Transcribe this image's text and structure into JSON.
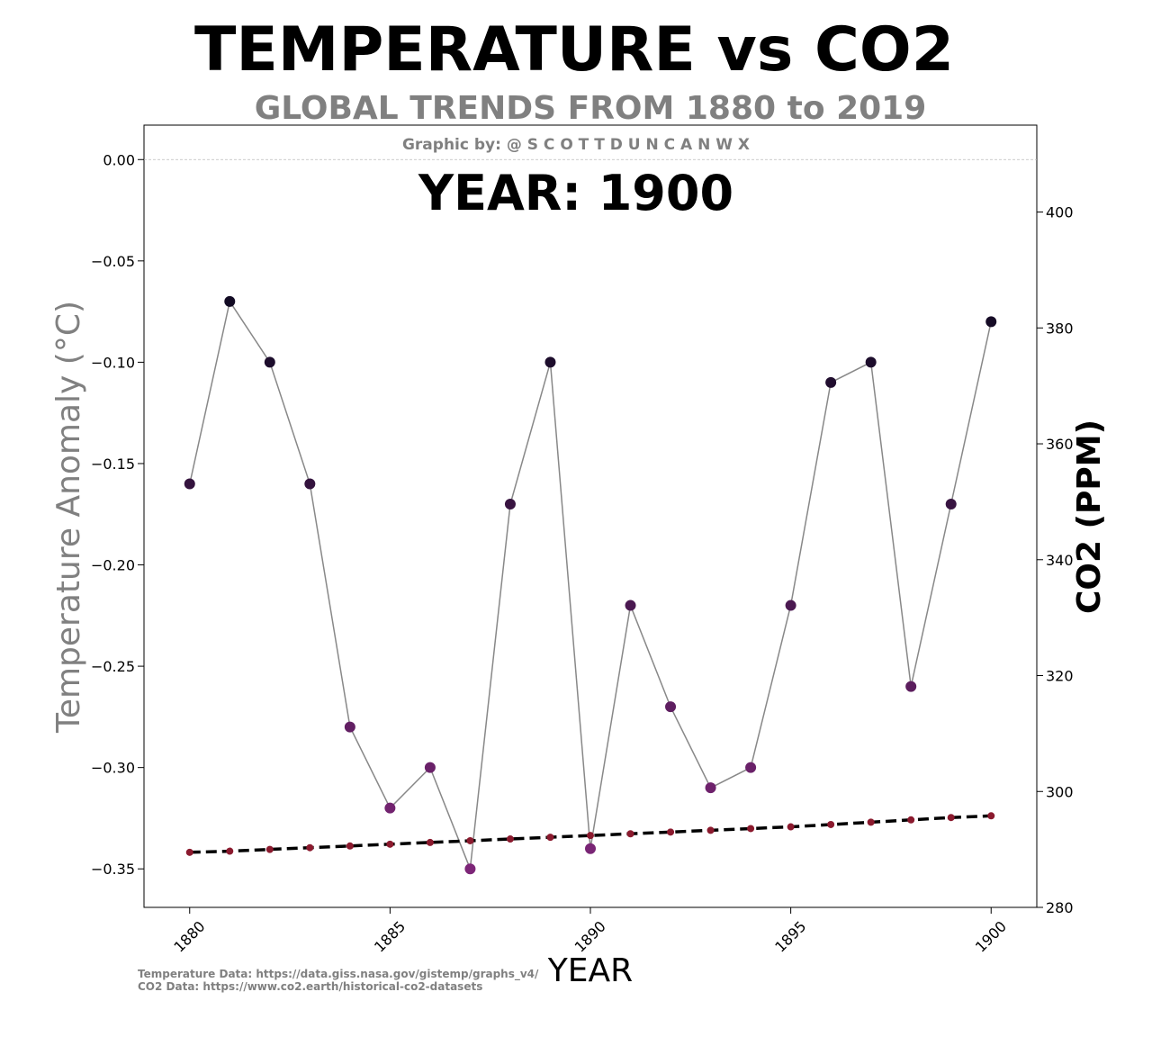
{
  "chart_data": {
    "type": "line",
    "title": "TEMPERATURE vs CO2",
    "subtitle": "GLOBAL TRENDS FROM 1880 to 2019",
    "credit": "Graphic by: @ S C O T T D U N C A N W X",
    "year_label": "YEAR: 1900",
    "xlabel": "YEAR",
    "ylabel_left": "Temperature Anomaly (°C)",
    "ylabel_right": "CO2 (PPM)",
    "x": [
      1880,
      1881,
      1882,
      1883,
      1884,
      1885,
      1886,
      1887,
      1888,
      1889,
      1890,
      1891,
      1892,
      1893,
      1894,
      1895,
      1896,
      1897,
      1898,
      1899,
      1900
    ],
    "xlim": [
      1878.86,
      1901.14
    ],
    "x_ticks": [
      1880,
      1885,
      1890,
      1895,
      1900
    ],
    "ylim_left": [
      -0.369,
      0.017
    ],
    "y_ticks_left": [
      "0.00",
      "−0.05",
      "−0.10",
      "−0.15",
      "−0.20",
      "−0.25",
      "−0.30",
      "−0.35"
    ],
    "y_tick_values_left": [
      0.0,
      -0.05,
      -0.1,
      -0.15,
      -0.2,
      -0.25,
      -0.3,
      -0.35
    ],
    "ylim_right": [
      280,
      415
    ],
    "y_ticks_right": [
      280,
      300,
      320,
      340,
      360,
      380,
      400
    ],
    "series": [
      {
        "name": "",
        "axis": "left",
        "line_color": "#888888",
        "values": [
          -0.16,
          -0.07,
          -0.1,
          -0.16,
          -0.28,
          -0.32,
          -0.3,
          -0.35,
          -0.17,
          -0.1,
          -0.34,
          -0.22,
          -0.27,
          -0.31,
          -0.3,
          -0.22,
          -0.11,
          -0.1,
          -0.26,
          -0.17,
          -0.08
        ]
      },
      {
        "name": "",
        "axis": "right",
        "line_color": "#000000",
        "marker_color": "#8b1a2e",
        "values": [
          289.5,
          289.7,
          290.0,
          290.3,
          290.6,
          290.9,
          291.2,
          291.5,
          291.8,
          292.1,
          292.4,
          292.7,
          293.0,
          293.3,
          293.6,
          293.9,
          294.3,
          294.7,
          295.1,
          295.5,
          295.8
        ]
      }
    ],
    "grid": false,
    "legend": "none"
  },
  "sources": {
    "temperature": "Temperature Data: https://data.giss.nasa.gov/gistemp/graphs_v4/",
    "co2": "CO2 Data: https://www.co2.earth/historical-co2-datasets"
  }
}
